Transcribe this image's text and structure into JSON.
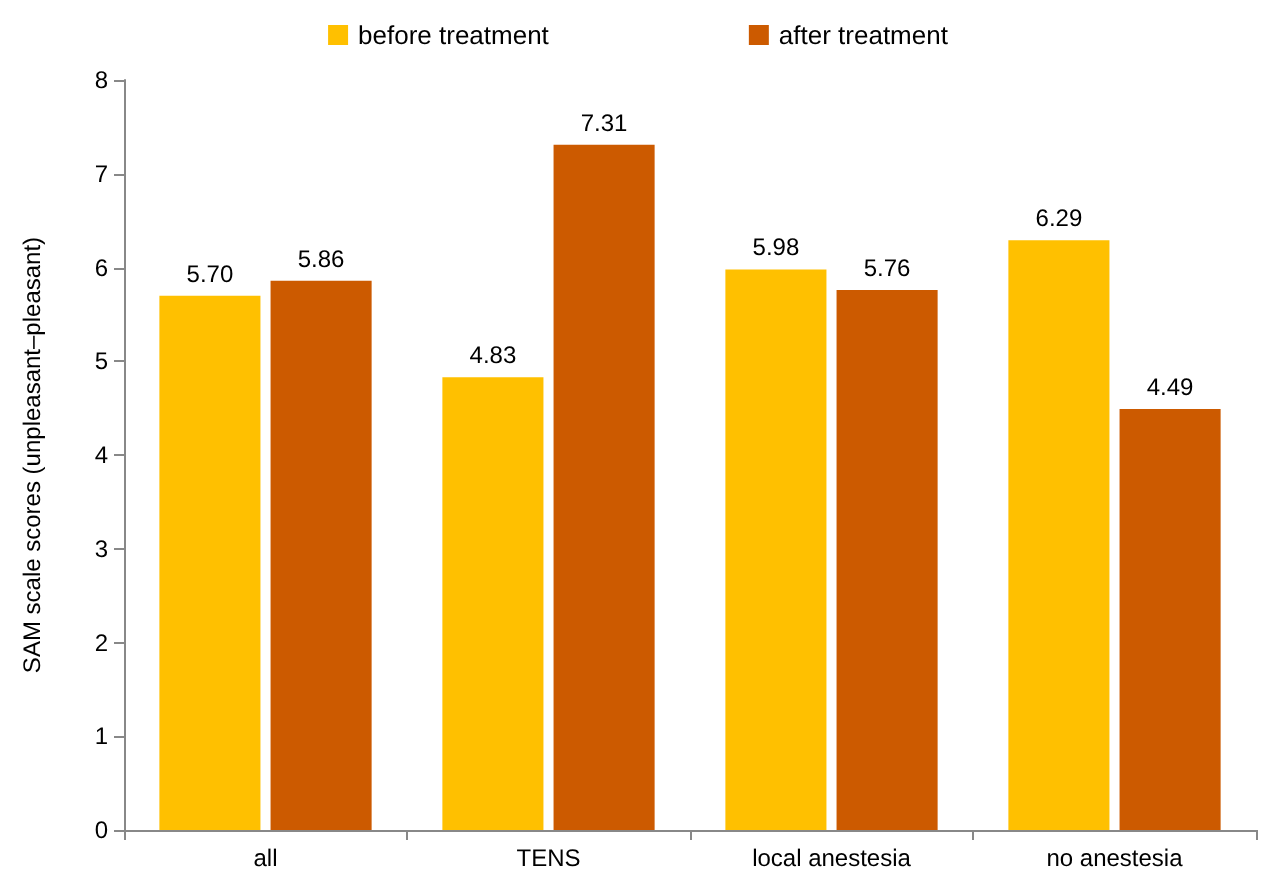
{
  "chart_data": {
    "type": "bar",
    "ylabel": "SAM scale scores (unpleasant–pleasant)",
    "categories": [
      "all",
      "TENS",
      "local anestesia",
      "no anestesia"
    ],
    "series": [
      {
        "name": "before treatment",
        "color": "#ffc000",
        "values": [
          5.7,
          4.83,
          5.98,
          6.29
        ],
        "value_labels": [
          "5.70",
          "4.83",
          "5.98",
          "6.29"
        ]
      },
      {
        "name": "after treatment",
        "color": "#cc5a00",
        "values": [
          5.86,
          7.31,
          5.76,
          4.49
        ],
        "value_labels": [
          "5.86",
          "7.31",
          "5.76",
          "4.49"
        ]
      }
    ],
    "ylim": [
      0,
      8
    ],
    "yticks": [
      0,
      1,
      2,
      3,
      4,
      5,
      6,
      7,
      8
    ],
    "grid": false,
    "legend": "top"
  }
}
